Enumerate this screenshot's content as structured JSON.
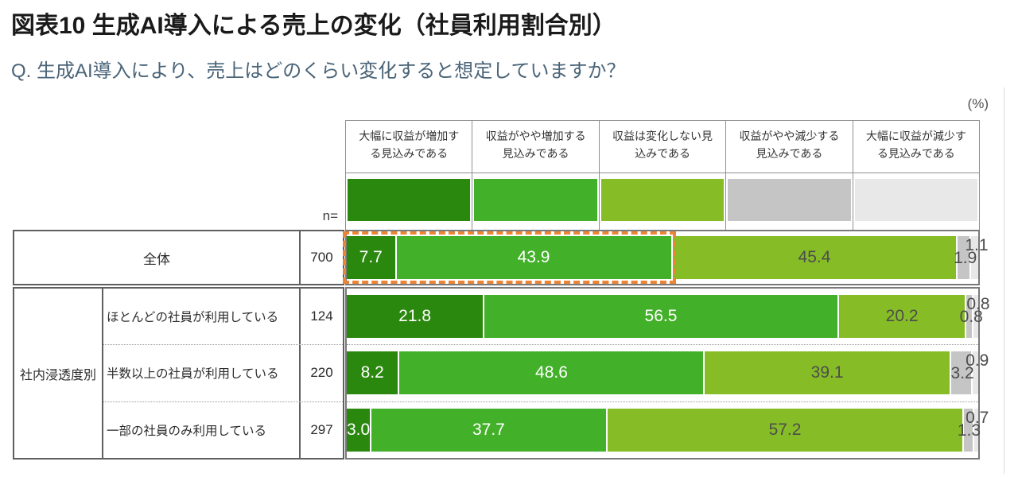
{
  "header": {
    "title": "図表10 生成AI導入による売上の変化（社員利用割合別）",
    "question": "Q. 生成AI導入により、売上はどのくらい変化すると想定していますか？",
    "unit_label": "(%)",
    "n_label": "n="
  },
  "colors": {
    "title_text": "#1a1a1a",
    "question_text": "#4a6478",
    "value_text_light": "#ffffff",
    "value_text_dark": "#4d4d4d",
    "highlight_dash": "#ec8435",
    "label_table_border": "#5f5f5f",
    "chart_border": "#7a7a7a",
    "legend_border": "#8f8f8f"
  },
  "chart_data": {
    "type": "bar",
    "orientation": "horizontal",
    "stacked": true,
    "unit": "%",
    "xlim": [
      0,
      100
    ],
    "legend_position": "top",
    "segments": [
      {
        "label": "大幅に収益が増加する見込みである",
        "color": "#2b880e"
      },
      {
        "label": "収益がやや増加する見込みである",
        "color": "#43b02a"
      },
      {
        "label": "収益は変化しない見込みである",
        "color": "#86bc26"
      },
      {
        "label": "収益がやや減少する見込みである",
        "color": "#c5c5c5"
      },
      {
        "label": "大幅に収益が減少する見込みである",
        "color": "#e8e8e8"
      }
    ],
    "group_label": "社内浸透度別",
    "rows": [
      {
        "group": null,
        "label": "全体",
        "n": 700,
        "values": [
          7.7,
          43.9,
          45.4,
          1.9,
          1.1
        ],
        "highlighted_segments": [
          0,
          1
        ]
      },
      {
        "group": "社内浸透度別",
        "label": "ほとんどの社員が利用している",
        "n": 124,
        "values": [
          21.8,
          56.5,
          20.2,
          0.8,
          0.8
        ]
      },
      {
        "group": "社内浸透度別",
        "label": "半数以上の社員が利用している",
        "n": 220,
        "values": [
          8.2,
          48.6,
          39.1,
          3.2,
          0.9
        ]
      },
      {
        "group": "社内浸透度別",
        "label": "一部の社員のみ利用している",
        "n": 297,
        "values": [
          3.0,
          37.7,
          57.2,
          1.3,
          0.7
        ]
      }
    ]
  }
}
